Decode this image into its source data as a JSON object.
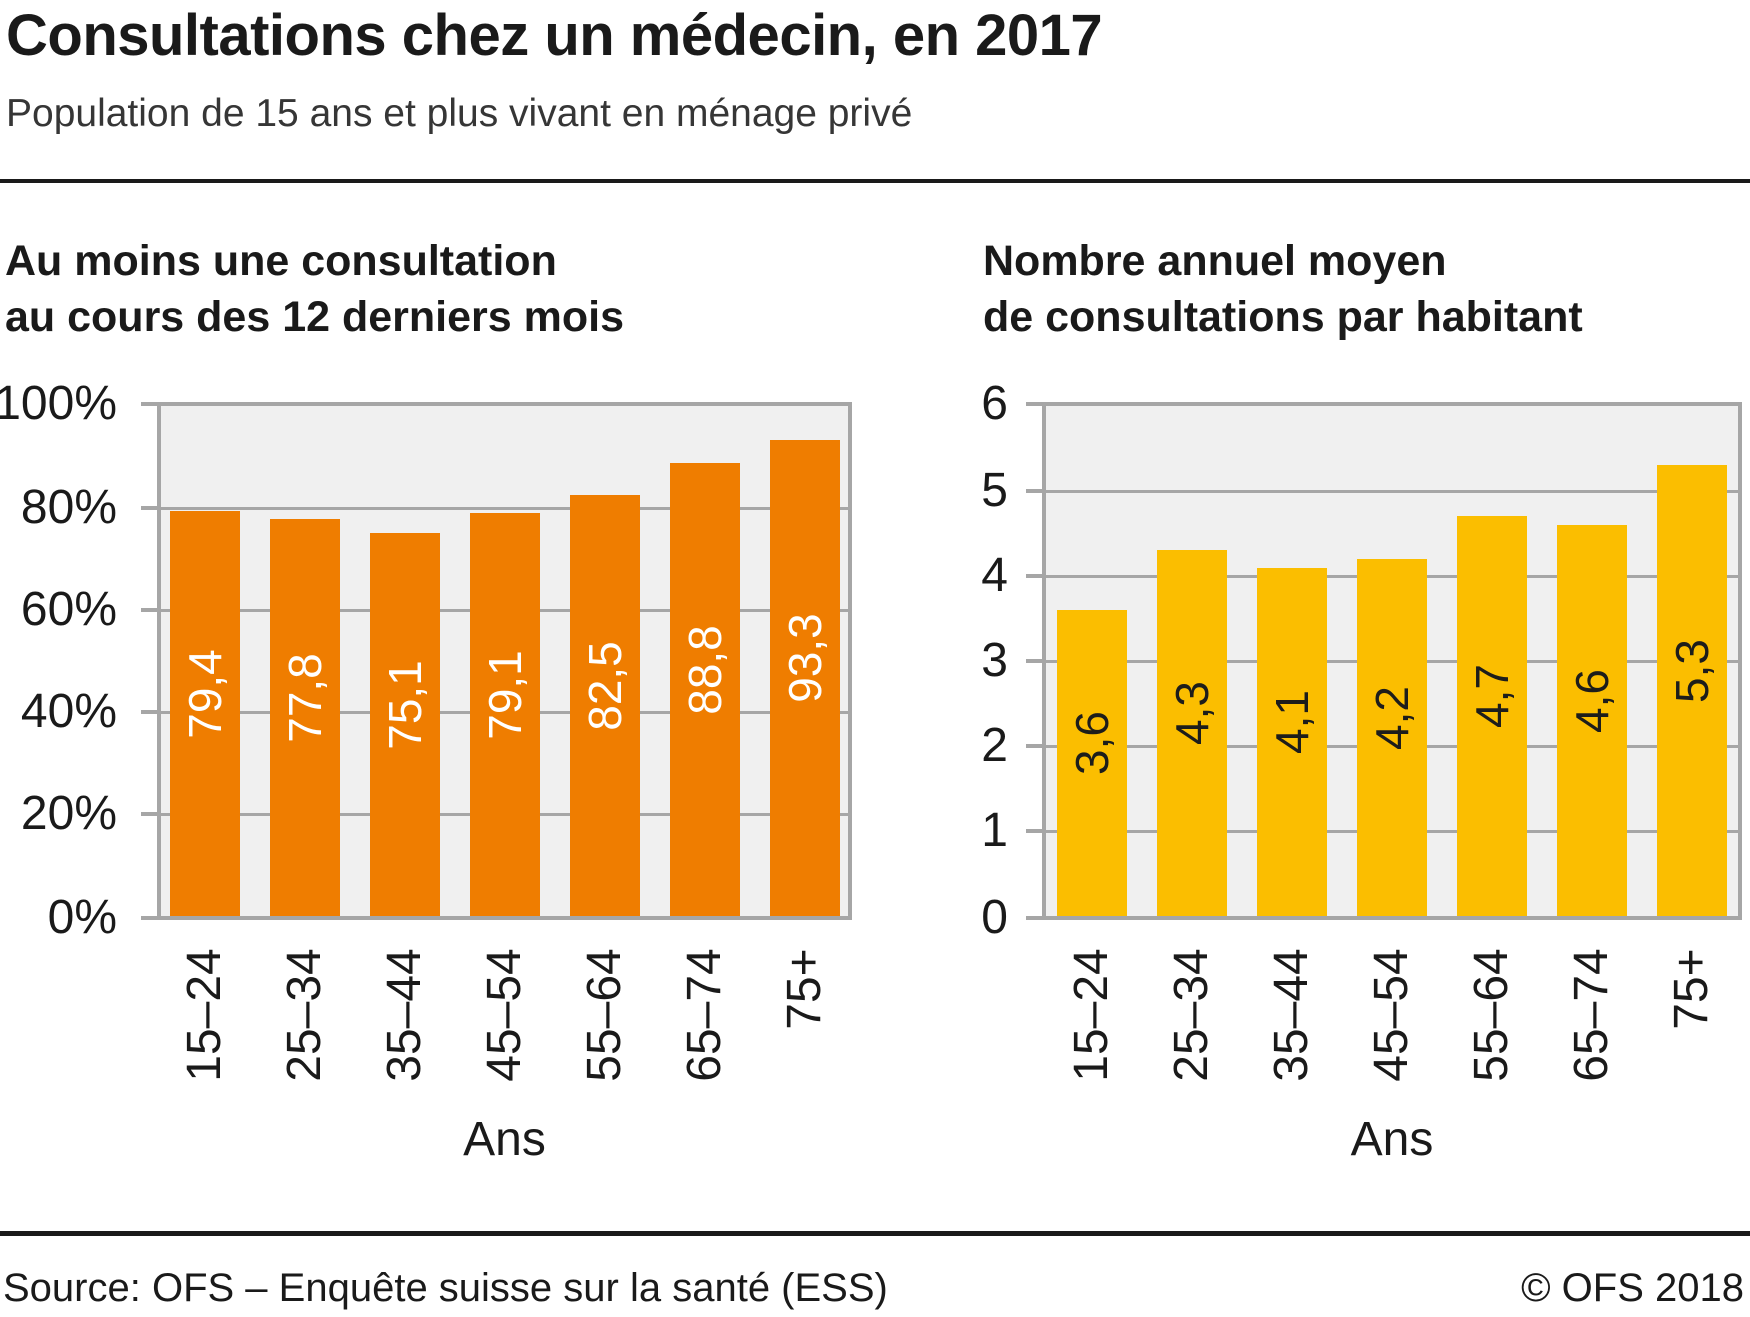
{
  "header": {
    "title": "Consultations chez un médecin, en 2017",
    "subtitle": "Population de 15 ans et plus vivant en ménage privé"
  },
  "colors": {
    "plot_background": "#f0f0f0",
    "grid": "#a6a6a6",
    "frame": "#a6a6a6",
    "bar_orange": "#ef7d00",
    "bar_yellow": "#fbbe00"
  },
  "chart_data": [
    {
      "type": "bar",
      "title": "Au moins une consultation au cours des 12 derniers mois",
      "title_lines": [
        "Au moins une consultation",
        "au cours des 12 derniers mois"
      ],
      "xlabel": "Ans",
      "categories": [
        "15–24",
        "25–34",
        "35–44",
        "45–54",
        "55–64",
        "65–74",
        "75+"
      ],
      "values": [
        79.4,
        77.8,
        75.1,
        79.1,
        82.5,
        88.8,
        93.3
      ],
      "value_labels": [
        "79,4",
        "77,8",
        "75,1",
        "79,1",
        "82,5",
        "88,8",
        "93,3"
      ],
      "ylim": [
        0,
        100
      ],
      "ytick_values": [
        0,
        20,
        40,
        60,
        80,
        100
      ],
      "ytick_labels": [
        "0%",
        "20%",
        "40%",
        "60%",
        "80%",
        "100%"
      ],
      "grid": true,
      "legend": "none",
      "bar_color": "#ef7d00",
      "value_label_color": "#ffffff"
    },
    {
      "type": "bar",
      "title": "Nombre annuel moyen de consultations par habitant",
      "title_lines": [
        "Nombre annuel moyen",
        "de consultations par habitant"
      ],
      "xlabel": "Ans",
      "categories": [
        "15–24",
        "25–34",
        "35–44",
        "45–54",
        "55–64",
        "65–74",
        "75+"
      ],
      "values": [
        3.6,
        4.3,
        4.1,
        4.2,
        4.7,
        4.6,
        5.3
      ],
      "value_labels": [
        "3,6",
        "4,3",
        "4,1",
        "4,2",
        "4,7",
        "4,6",
        "5,3"
      ],
      "ylim": [
        0,
        6
      ],
      "ytick_values": [
        0,
        1,
        2,
        3,
        4,
        5,
        6
      ],
      "ytick_labels": [
        "0",
        "1",
        "2",
        "3",
        "4",
        "5",
        "6"
      ],
      "grid": true,
      "legend": "none",
      "bar_color": "#fbbe00",
      "value_label_color": "#1d1d1b"
    }
  ],
  "footer": {
    "source": "Source: OFS – Enquête suisse sur la santé (ESS)",
    "copyright": "© OFS 2018"
  }
}
